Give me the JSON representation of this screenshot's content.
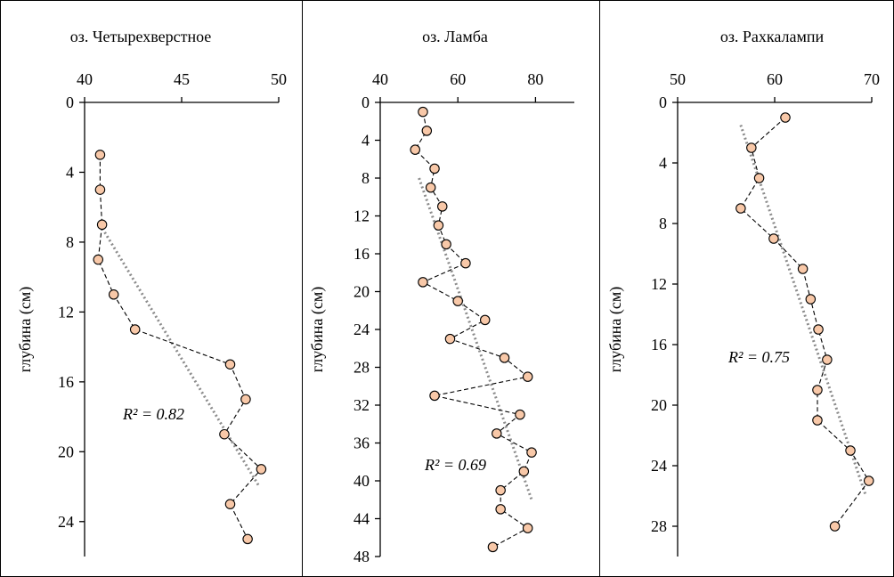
{
  "chart_data": [
    {
      "type": "line",
      "title": "оз. Четырехверстное",
      "ylabel": "глубина (см)",
      "xlabel": "",
      "x_axis_position": "top",
      "y_inverted": true,
      "xlim": [
        40,
        50
      ],
      "ylim": [
        0,
        26
      ],
      "x_ticks": [
        "40",
        "45",
        "50"
      ],
      "y_ticks": [
        "0",
        "4",
        "8",
        "12",
        "16",
        "20",
        "24"
      ],
      "annotation": "R² = 0.82",
      "series": [
        {
          "x": [
            40.8,
            40.8,
            40.9,
            40.7,
            41.5,
            42.6,
            47.5,
            48.3,
            47.2,
            49.1,
            47.5,
            48.4
          ],
          "y": [
            3,
            5,
            7,
            9,
            11,
            13,
            15,
            17,
            19,
            21,
            23,
            25
          ]
        }
      ],
      "trendline": {
        "x": [
          40.8,
          49.0
        ],
        "y": [
          7,
          22
        ]
      }
    },
    {
      "type": "line",
      "title": "оз. Ламба",
      "ylabel": "глубина (см)",
      "xlabel": "",
      "x_axis_position": "top",
      "y_inverted": true,
      "xlim": [
        40,
        90
      ],
      "ylim": [
        0,
        48
      ],
      "x_ticks": [
        "40",
        "60",
        "80"
      ],
      "y_ticks": [
        "0",
        "4",
        "8",
        "12",
        "16",
        "20",
        "24",
        "28",
        "32",
        "36",
        "40",
        "44",
        "48"
      ],
      "annotation": "R² = 0.69",
      "series": [
        {
          "x": [
            51,
            52,
            49,
            54,
            53,
            56,
            55,
            57,
            62,
            51,
            60,
            67,
            58,
            72,
            78,
            54,
            76,
            70,
            79,
            77,
            71,
            71,
            78,
            69
          ],
          "y": [
            1,
            3,
            5,
            7,
            9,
            11,
            13,
            15,
            17,
            19,
            21,
            23,
            25,
            27,
            29,
            31,
            33,
            35,
            37,
            39,
            41,
            43,
            45,
            47
          ]
        }
      ],
      "trendline": {
        "x": [
          50,
          79
        ],
        "y": [
          8,
          42
        ]
      }
    },
    {
      "type": "line",
      "title": "оз. Рахкалампи",
      "ylabel": "глубина (см)",
      "xlabel": "",
      "x_axis_position": "top",
      "y_inverted": true,
      "xlim": [
        50,
        70
      ],
      "ylim": [
        0,
        30
      ],
      "x_ticks": [
        "50",
        "60",
        "70"
      ],
      "y_ticks": [
        "0",
        "4",
        "8",
        "12",
        "16",
        "20",
        "24",
        "28"
      ],
      "annotation": "R² = 0.75",
      "series": [
        {
          "x": [
            61.1,
            57.6,
            58.4,
            56.5,
            59.9,
            62.9,
            63.7,
            64.5,
            65.4,
            64.4,
            64.4,
            67.8,
            69.7,
            66.2
          ],
          "y": [
            1,
            3,
            5,
            7,
            9,
            11,
            13,
            15,
            17,
            19,
            21,
            23,
            25,
            28
          ]
        }
      ],
      "trendline": {
        "x": [
          56.5,
          69.4
        ],
        "y": [
          1.5,
          26
        ]
      }
    }
  ]
}
